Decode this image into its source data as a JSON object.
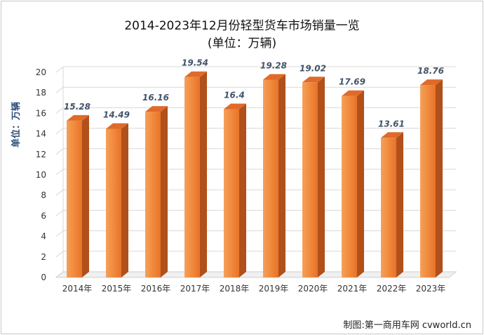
{
  "chart_data": {
    "type": "bar",
    "title": "2014-2023年12月份轻型货车市场销量一览",
    "subtitle": "(单位：万辆)",
    "ylabel": "单位：万辆",
    "xlabel": "",
    "categories": [
      "2014年",
      "2015年",
      "2016年",
      "2017年",
      "2018年",
      "2019年",
      "2020年",
      "2021年",
      "2022年",
      "2023年"
    ],
    "values": [
      15.28,
      14.49,
      16.16,
      19.54,
      16.4,
      19.28,
      19.02,
      17.69,
      13.61,
      18.76
    ],
    "data_labels": [
      "15.28",
      "14.49",
      "16.16",
      "19.54",
      "16.4",
      "19.28",
      "19.02",
      "17.69",
      "13.61",
      "18.76"
    ],
    "ylim": [
      0,
      20
    ],
    "yticks": [
      0,
      2,
      4,
      6,
      8,
      10,
      12,
      14,
      16,
      18,
      20
    ],
    "grid": true,
    "style": "3d-bar",
    "colors": {
      "bar_front": "#f08a3c",
      "bar_side": "#b0501a",
      "bar_top": "#e06a28",
      "grid": "#d8d8d8",
      "axis_text": "#333333",
      "data_label": "#44546a"
    }
  },
  "credit": "制图:第一商用车网 cvworld.cn"
}
